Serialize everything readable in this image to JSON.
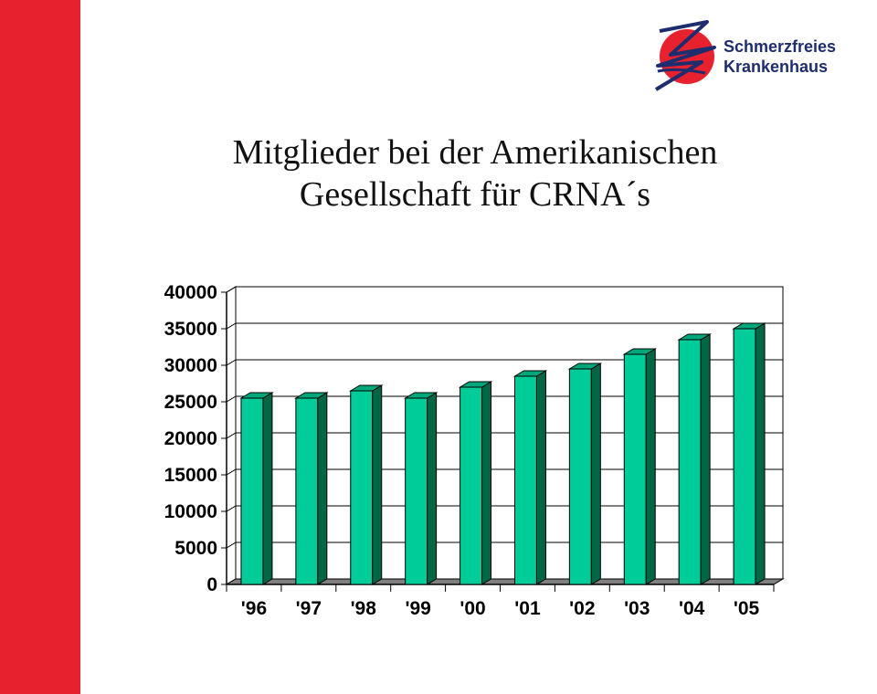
{
  "logo": {
    "line1": "Schmerzfreies",
    "line2": "Krankenhaus",
    "colors": {
      "red": "#e8212e",
      "navy": "#1d2d6e"
    }
  },
  "title": {
    "line1": "Mitglieder bei der Amerikanischen",
    "line2": "Gesellschaft für CRNA´s"
  },
  "chart_data": {
    "type": "bar",
    "categories": [
      "'96",
      "'97",
      "'98",
      "'99",
      "'00",
      "'01",
      "'02",
      "'03",
      "'04",
      "'05"
    ],
    "values": [
      25500,
      25500,
      26500,
      25500,
      27000,
      28500,
      29500,
      31500,
      33500,
      35000
    ],
    "title": "",
    "xlabel": "",
    "ylabel": "",
    "ylim": [
      0,
      40000
    ],
    "yticks": [
      0,
      5000,
      10000,
      15000,
      20000,
      25000,
      30000,
      35000,
      40000
    ],
    "grid": true,
    "legend": "none",
    "colors": {
      "bar_front": "#00cc99",
      "bar_side": "#006644",
      "bar_top": "#00a77a",
      "floor": "#808080"
    }
  }
}
